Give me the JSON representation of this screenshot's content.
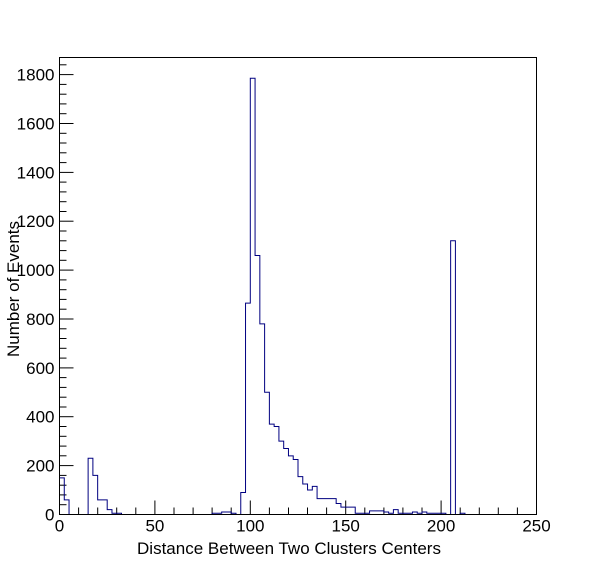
{
  "chart_data": {
    "type": "bar",
    "style": "step-histogram",
    "title": "",
    "xlabel": "Distance Between Two Clusters Centers",
    "ylabel": "Number of Events",
    "xlim": [
      0,
      250
    ],
    "ylim": [
      0,
      1870
    ],
    "grid": false,
    "legend": "none",
    "line_color": "#000080",
    "bin_width": 2.5,
    "bin_start": 0,
    "x_ticks": [
      0,
      50,
      100,
      150,
      200,
      250
    ],
    "y_ticks": [
      0,
      200,
      400,
      600,
      800,
      1000,
      1200,
      1400,
      1600,
      1800
    ],
    "values": [
      150,
      60,
      0,
      0,
      0,
      0,
      230,
      160,
      60,
      60,
      20,
      5,
      5,
      0,
      0,
      0,
      0,
      0,
      0,
      0,
      0,
      0,
      0,
      0,
      0,
      0,
      0,
      0,
      0,
      0,
      0,
      0,
      5,
      5,
      10,
      10,
      5,
      0,
      90,
      865,
      1785,
      1060,
      780,
      500,
      370,
      360,
      300,
      270,
      240,
      225,
      155,
      125,
      100,
      115,
      65,
      65,
      65,
      65,
      45,
      30,
      30,
      30,
      25,
      20,
      20,
      15,
      15,
      15,
      10,
      5,
      20,
      10,
      5,
      5,
      10,
      5,
      10,
      5,
      5,
      5,
      5,
      0,
      0,
      0,
      0,
      0,
      0,
      0,
      0,
      0,
      0,
      0,
      0,
      0,
      0,
      0,
      0,
      0,
      0,
      0,
      0,
      0,
      0,
      0,
      0,
      0,
      0,
      0,
      0,
      0,
      0,
      0,
      0,
      0,
      0,
      0,
      0,
      0,
      0,
      0,
      0,
      0,
      0,
      0,
      0,
      0,
      0,
      0,
      0,
      0,
      0,
      0,
      0,
      0,
      0,
      0,
      0,
      0,
      0,
      0,
      0,
      0,
      0,
      0,
      0,
      0,
      0,
      0,
      0,
      0,
      0,
      0,
      0,
      0,
      0,
      0,
      0,
      0,
      0,
      0
    ],
    "extra_bins": [
      {
        "x": 155,
        "value": 5
      },
      {
        "x": 157.5,
        "value": 5
      },
      {
        "x": 160,
        "value": 5
      },
      {
        "x": 177.5,
        "value": 5
      },
      {
        "x": 180,
        "value": 5
      },
      {
        "x": 205,
        "value": 1120
      },
      {
        "x": 207.5,
        "value": 0
      },
      {
        "x": 210,
        "value": 5
      }
    ]
  }
}
